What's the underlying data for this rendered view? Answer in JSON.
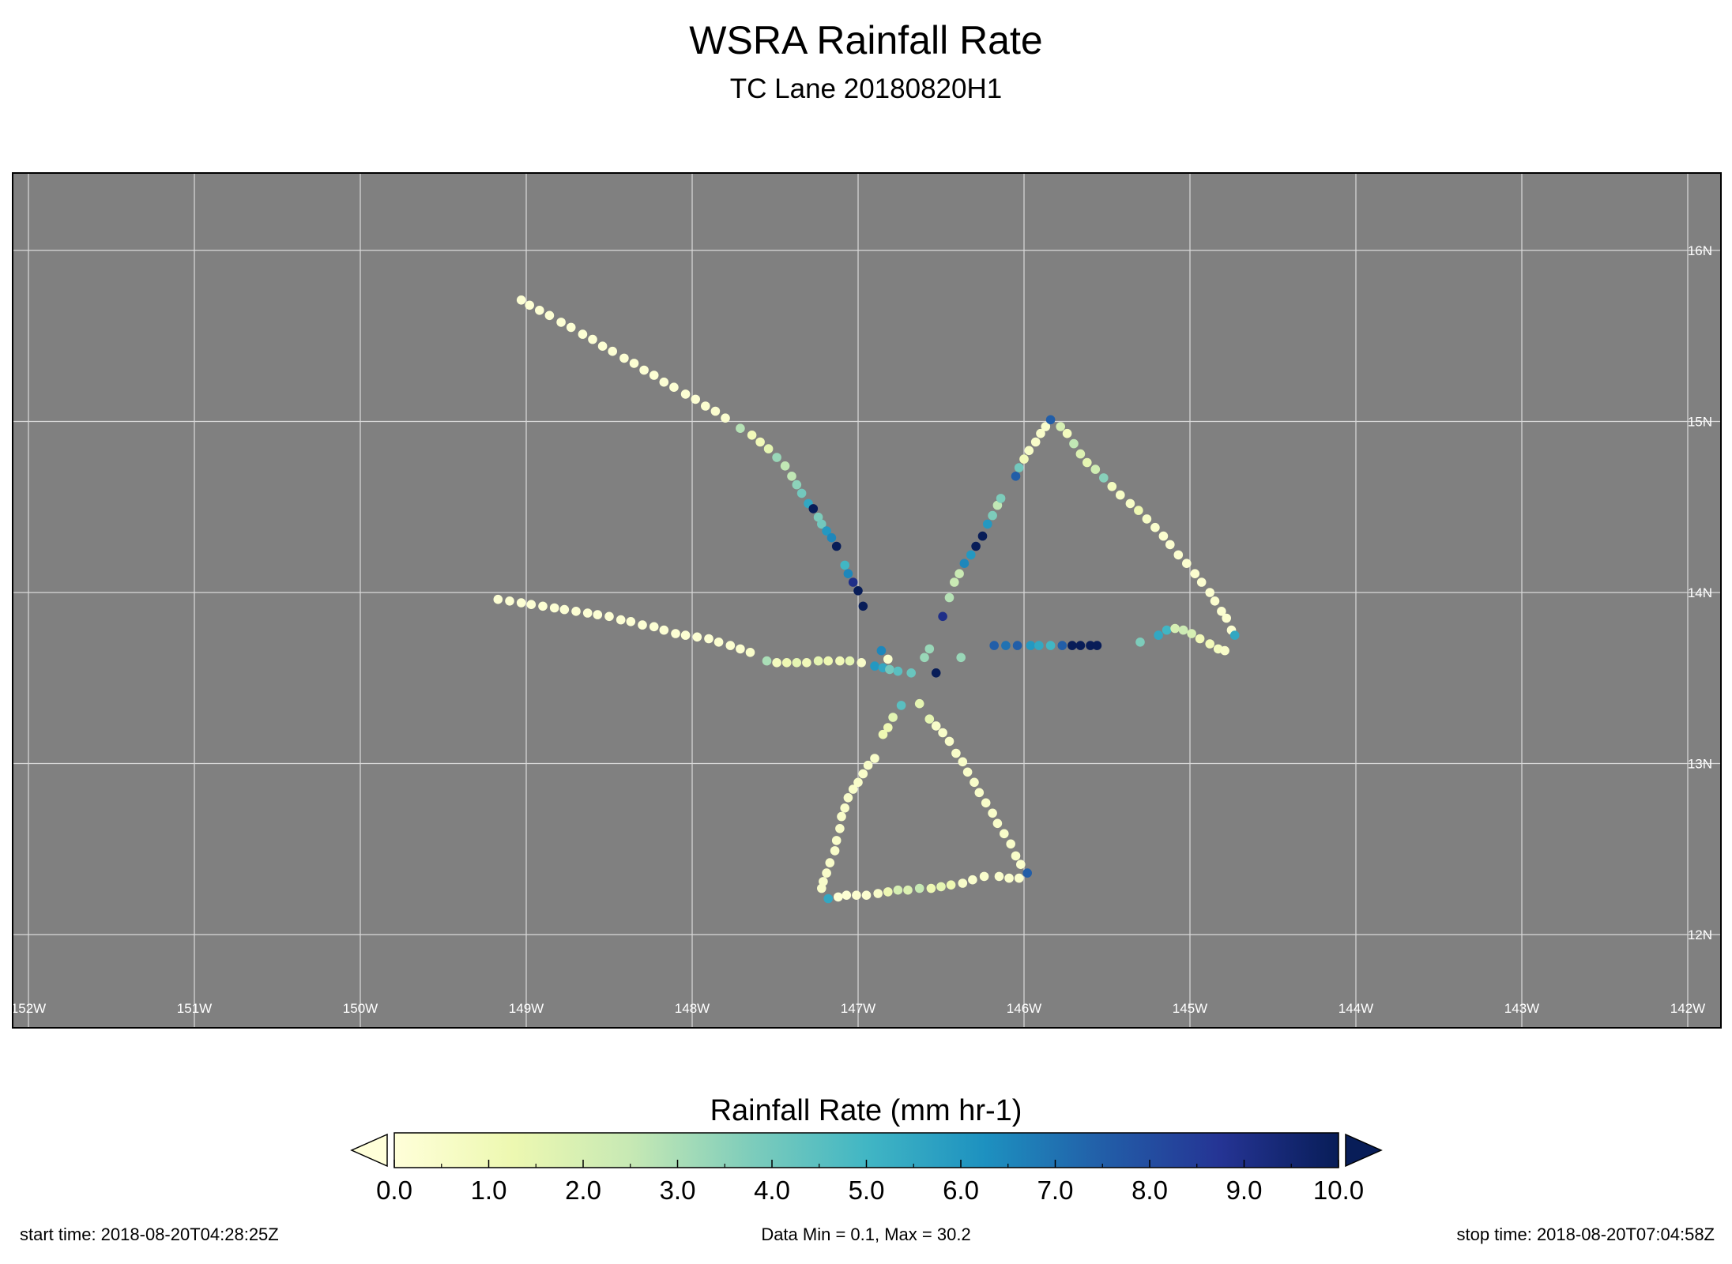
{
  "title": "WSRA Rainfall Rate",
  "subtitle": "TC Lane 20180820H1",
  "colorbar": {
    "label": "Rainfall Rate (mm hr-1)",
    "min": 0,
    "max": 10,
    "ticks": [
      "0.0",
      "1.0",
      "2.0",
      "3.0",
      "4.0",
      "5.0",
      "6.0",
      "7.0",
      "8.0",
      "9.0",
      "10.0"
    ],
    "colormap": "YlGnBu",
    "extend": "both"
  },
  "footer": {
    "start_time": "start time: 2018-08-20T04:28:25Z",
    "data_range": "Data Min = 0.1, Max = 30.2",
    "stop_time": "stop time: 2018-08-20T07:04:58Z"
  },
  "chart_data": {
    "type": "scatter",
    "xlabel": "",
    "ylabel": "",
    "xlim": [
      -152.1,
      -141.8
    ],
    "ylim": [
      11.45,
      16.45
    ],
    "x_ticks": [
      {
        "value": -152,
        "label": "152W"
      },
      {
        "value": -151,
        "label": "151W"
      },
      {
        "value": -150,
        "label": "150W"
      },
      {
        "value": -149,
        "label": "149W"
      },
      {
        "value": -148,
        "label": "148W"
      },
      {
        "value": -147,
        "label": "147W"
      },
      {
        "value": -146,
        "label": "146W"
      },
      {
        "value": -145,
        "label": "145W"
      },
      {
        "value": -144,
        "label": "144W"
      },
      {
        "value": -143,
        "label": "143W"
      },
      {
        "value": -142,
        "label": "142W"
      }
    ],
    "y_ticks": [
      {
        "value": 12,
        "label": "12N"
      },
      {
        "value": 13,
        "label": "13N"
      },
      {
        "value": 14,
        "label": "14N"
      },
      {
        "value": 15,
        "label": "15N"
      },
      {
        "value": 16,
        "label": "16N"
      }
    ],
    "grid": true,
    "background_color": "#808080",
    "points": [
      [
        -149.03,
        15.71,
        0.2
      ],
      [
        -148.98,
        15.68,
        0.2
      ],
      [
        -148.92,
        15.65,
        0.2
      ],
      [
        -148.86,
        15.62,
        0.2
      ],
      [
        -148.79,
        15.58,
        0.2
      ],
      [
        -148.73,
        15.55,
        0.2
      ],
      [
        -148.66,
        15.51,
        0.2
      ],
      [
        -148.6,
        15.48,
        0.2
      ],
      [
        -148.54,
        15.44,
        0.2
      ],
      [
        -148.48,
        15.41,
        0.2
      ],
      [
        -148.41,
        15.37,
        0.2
      ],
      [
        -148.35,
        15.34,
        0.2
      ],
      [
        -148.29,
        15.3,
        0.2
      ],
      [
        -148.23,
        15.27,
        0.2
      ],
      [
        -148.17,
        15.23,
        0.2
      ],
      [
        -148.11,
        15.2,
        0.2
      ],
      [
        -148.04,
        15.16,
        0.2
      ],
      [
        -147.98,
        15.13,
        0.2
      ],
      [
        -147.92,
        15.09,
        0.3
      ],
      [
        -147.86,
        15.06,
        0.3
      ],
      [
        -147.8,
        15.02,
        0.3
      ],
      [
        -147.71,
        14.96,
        2.8
      ],
      [
        -147.64,
        14.92,
        1.0
      ],
      [
        -147.59,
        14.88,
        1.0
      ],
      [
        -147.54,
        14.84,
        1.5
      ],
      [
        -147.49,
        14.79,
        3.3
      ],
      [
        -147.44,
        14.74,
        2.6
      ],
      [
        -147.4,
        14.68,
        2.6
      ],
      [
        -147.37,
        14.63,
        3.5
      ],
      [
        -147.34,
        14.58,
        4.0
      ],
      [
        -147.3,
        14.52,
        5.5
      ],
      [
        -147.27,
        14.49,
        10.5
      ],
      [
        -147.24,
        14.44,
        3.8
      ],
      [
        -147.22,
        14.4,
        4.0
      ],
      [
        -147.19,
        14.36,
        6.0
      ],
      [
        -147.16,
        14.32,
        6.5
      ],
      [
        -147.13,
        14.27,
        10.5
      ],
      [
        -147.08,
        14.16,
        5.0
      ],
      [
        -147.06,
        14.11,
        6.5
      ],
      [
        -147.03,
        14.06,
        9.0
      ],
      [
        -147.0,
        14.01,
        10.5
      ],
      [
        -146.97,
        13.92,
        10.5
      ],
      [
        -149.17,
        13.96,
        0.2
      ],
      [
        -149.1,
        13.95,
        0.2
      ],
      [
        -149.03,
        13.94,
        0.2
      ],
      [
        -148.97,
        13.93,
        0.2
      ],
      [
        -148.9,
        13.92,
        0.2
      ],
      [
        -148.83,
        13.91,
        0.2
      ],
      [
        -148.77,
        13.9,
        0.2
      ],
      [
        -148.7,
        13.89,
        0.2
      ],
      [
        -148.63,
        13.88,
        0.2
      ],
      [
        -148.57,
        13.87,
        0.2
      ],
      [
        -148.5,
        13.86,
        0.2
      ],
      [
        -148.43,
        13.84,
        0.2
      ],
      [
        -148.37,
        13.83,
        0.2
      ],
      [
        -148.3,
        13.81,
        0.2
      ],
      [
        -148.23,
        13.8,
        0.2
      ],
      [
        -148.17,
        13.78,
        0.2
      ],
      [
        -148.1,
        13.76,
        0.2
      ],
      [
        -148.04,
        13.75,
        0.2
      ],
      [
        -147.97,
        13.74,
        0.2
      ],
      [
        -147.9,
        13.73,
        0.2
      ],
      [
        -147.84,
        13.71,
        0.3
      ],
      [
        -147.77,
        13.69,
        0.3
      ],
      [
        -147.71,
        13.67,
        0.3
      ],
      [
        -147.65,
        13.65,
        0.5
      ],
      [
        -147.55,
        13.6,
        3.0
      ],
      [
        -147.49,
        13.59,
        0.8
      ],
      [
        -147.43,
        13.59,
        1.2
      ],
      [
        -147.37,
        13.59,
        1.5
      ],
      [
        -147.31,
        13.59,
        1.0
      ],
      [
        -147.24,
        13.6,
        1.5
      ],
      [
        -147.18,
        13.6,
        1.2
      ],
      [
        -147.11,
        13.6,
        1.0
      ],
      [
        -147.05,
        13.6,
        1.5
      ],
      [
        -146.98,
        13.59,
        0.5
      ],
      [
        -146.9,
        13.57,
        6.0
      ],
      [
        -146.85,
        13.56,
        5.5
      ],
      [
        -146.81,
        13.55,
        4.0
      ],
      [
        -146.76,
        13.54,
        4.5
      ],
      [
        -146.68,
        13.53,
        4.2
      ],
      [
        -146.86,
        13.66,
        6.5
      ],
      [
        -146.82,
        13.61,
        0.4
      ],
      [
        -146.6,
        13.62,
        3.3
      ],
      [
        -146.57,
        13.67,
        3.3
      ],
      [
        -146.38,
        13.62,
        3.3
      ],
      [
        -146.53,
        13.53,
        10.5
      ],
      [
        -146.49,
        13.86,
        9.0
      ],
      [
        -146.45,
        13.97,
        2.8
      ],
      [
        -146.42,
        14.06,
        2.4
      ],
      [
        -146.39,
        14.11,
        2.4
      ],
      [
        -146.36,
        14.17,
        6.5
      ],
      [
        -146.32,
        14.22,
        6.0
      ],
      [
        -146.29,
        14.27,
        10.5
      ],
      [
        -146.25,
        14.33,
        10.5
      ],
      [
        -146.22,
        14.4,
        6.0
      ],
      [
        -146.19,
        14.45,
        3.8
      ],
      [
        -146.16,
        14.51,
        2.6
      ],
      [
        -146.14,
        14.55,
        3.8
      ],
      [
        -146.05,
        14.68,
        7.5
      ],
      [
        -146.03,
        14.73,
        4.0
      ],
      [
        -146.0,
        14.78,
        1.0
      ],
      [
        -145.97,
        14.83,
        0.6
      ],
      [
        -145.93,
        14.88,
        0.5
      ],
      [
        -145.9,
        14.93,
        0.5
      ],
      [
        -145.87,
        14.97,
        0.4
      ],
      [
        -145.84,
        15.01,
        7.5
      ],
      [
        -145.78,
        14.97,
        2.0
      ],
      [
        -145.74,
        14.93,
        0.8
      ],
      [
        -145.7,
        14.87,
        2.6
      ],
      [
        -145.66,
        14.81,
        1.8
      ],
      [
        -145.62,
        14.76,
        1.5
      ],
      [
        -145.57,
        14.72,
        2.2
      ],
      [
        -145.52,
        14.67,
        3.6
      ],
      [
        -145.47,
        14.62,
        0.8
      ],
      [
        -145.42,
        14.57,
        0.6
      ],
      [
        -145.36,
        14.52,
        0.6
      ],
      [
        -145.31,
        14.48,
        1.2
      ],
      [
        -145.26,
        14.43,
        0.6
      ],
      [
        -145.21,
        14.38,
        0.4
      ],
      [
        -145.16,
        14.33,
        0.3
      ],
      [
        -145.12,
        14.28,
        0.3
      ],
      [
        -145.07,
        14.22,
        0.3
      ],
      [
        -145.02,
        14.17,
        0.3
      ],
      [
        -144.97,
        14.11,
        0.3
      ],
      [
        -144.93,
        14.06,
        0.3
      ],
      [
        -144.88,
        14.0,
        0.3
      ],
      [
        -144.85,
        13.95,
        0.3
      ],
      [
        -144.81,
        13.89,
        0.3
      ],
      [
        -144.78,
        13.85,
        0.3
      ],
      [
        -144.75,
        13.78,
        0.3
      ],
      [
        -144.73,
        13.75,
        5.5
      ],
      [
        -146.18,
        13.69,
        7.5
      ],
      [
        -146.11,
        13.69,
        7.0
      ],
      [
        -146.04,
        13.69,
        7.5
      ],
      [
        -145.96,
        13.69,
        6.0
      ],
      [
        -145.91,
        13.69,
        5.5
      ],
      [
        -145.84,
        13.69,
        5.0
      ],
      [
        -145.77,
        13.69,
        7.5
      ],
      [
        -145.71,
        13.69,
        10.5
      ],
      [
        -145.66,
        13.69,
        10.5
      ],
      [
        -145.6,
        13.69,
        10.5
      ],
      [
        -145.56,
        13.69,
        10.5
      ],
      [
        -145.3,
        13.71,
        3.8
      ],
      [
        -145.19,
        13.75,
        5.5
      ],
      [
        -145.14,
        13.78,
        5.0
      ],
      [
        -145.09,
        13.79,
        2.0
      ],
      [
        -145.04,
        13.78,
        2.3
      ],
      [
        -144.99,
        13.76,
        2.0
      ],
      [
        -144.94,
        13.73,
        1.0
      ],
      [
        -144.88,
        13.7,
        1.0
      ],
      [
        -144.83,
        13.67,
        0.8
      ],
      [
        -144.79,
        13.66,
        0.5
      ],
      [
        -146.63,
        13.35,
        1.5
      ],
      [
        -146.57,
        13.26,
        1.5
      ],
      [
        -146.53,
        13.22,
        0.5
      ],
      [
        -146.49,
        13.18,
        0.5
      ],
      [
        -146.45,
        13.13,
        0.5
      ],
      [
        -146.41,
        13.06,
        0.5
      ],
      [
        -146.37,
        13.01,
        0.5
      ],
      [
        -146.34,
        12.95,
        0.5
      ],
      [
        -146.3,
        12.89,
        0.5
      ],
      [
        -146.27,
        12.83,
        0.5
      ],
      [
        -146.23,
        12.77,
        0.5
      ],
      [
        -146.19,
        12.71,
        0.5
      ],
      [
        -146.16,
        12.65,
        0.5
      ],
      [
        -146.12,
        12.59,
        0.5
      ],
      [
        -146.08,
        12.53,
        0.5
      ],
      [
        -146.05,
        12.46,
        0.5
      ],
      [
        -146.02,
        12.41,
        0.4
      ],
      [
        -145.98,
        12.36,
        7.5
      ],
      [
        -146.03,
        12.33,
        0.4
      ],
      [
        -146.09,
        12.33,
        0.4
      ],
      [
        -146.15,
        12.34,
        0.4
      ],
      [
        -146.24,
        12.34,
        0.4
      ],
      [
        -146.31,
        12.32,
        0.4
      ],
      [
        -146.37,
        12.3,
        0.5
      ],
      [
        -146.44,
        12.29,
        1.2
      ],
      [
        -146.5,
        12.28,
        1.5
      ],
      [
        -146.56,
        12.27,
        1.2
      ],
      [
        -146.63,
        12.27,
        2.5
      ],
      [
        -146.7,
        12.26,
        1.8
      ],
      [
        -146.76,
        12.26,
        2.0
      ],
      [
        -146.82,
        12.25,
        1.2
      ],
      [
        -146.88,
        12.24,
        0.5
      ],
      [
        -146.95,
        12.23,
        0.3
      ],
      [
        -147.01,
        12.23,
        0.3
      ],
      [
        -147.07,
        12.23,
        0.2
      ],
      [
        -147.12,
        12.22,
        0.2
      ],
      [
        -147.18,
        12.21,
        5.5
      ],
      [
        -147.22,
        12.27,
        0.5
      ],
      [
        -147.21,
        12.31,
        0.5
      ],
      [
        -147.19,
        12.36,
        0.5
      ],
      [
        -147.17,
        12.42,
        0.5
      ],
      [
        -147.14,
        12.49,
        0.5
      ],
      [
        -147.13,
        12.55,
        0.5
      ],
      [
        -147.11,
        12.62,
        0.5
      ],
      [
        -147.1,
        12.69,
        0.5
      ],
      [
        -147.08,
        12.74,
        0.5
      ],
      [
        -147.06,
        12.8,
        0.5
      ],
      [
        -147.03,
        12.85,
        0.5
      ],
      [
        -147.0,
        12.89,
        0.5
      ],
      [
        -146.97,
        12.94,
        0.5
      ],
      [
        -146.94,
        12.99,
        0.5
      ],
      [
        -146.9,
        13.03,
        0.5
      ],
      [
        -146.85,
        13.17,
        1.2
      ],
      [
        -146.82,
        13.21,
        1.2
      ],
      [
        -146.79,
        13.27,
        1.6
      ],
      [
        -146.74,
        13.34,
        4.5
      ]
    ]
  }
}
